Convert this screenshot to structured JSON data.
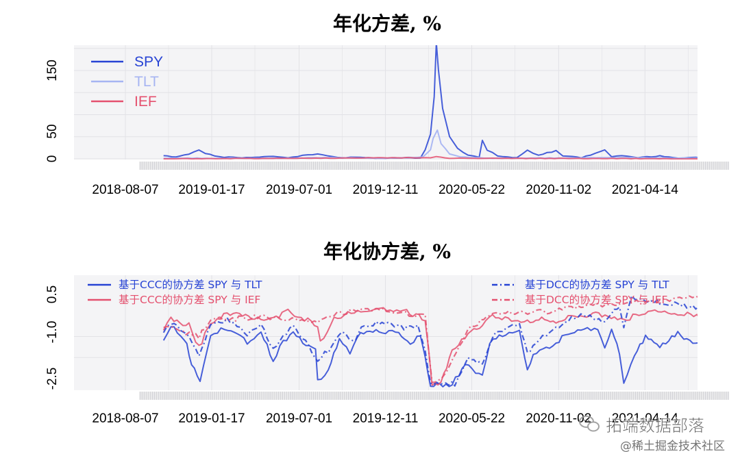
{
  "colors": {
    "spy": "#2743d4",
    "tlt": "#a6b4f2",
    "ief": "#e4506e",
    "panel": "#f4f4f6",
    "grid": "#e2e2e6"
  },
  "watermark": {
    "icon": "wechat-icon",
    "text": "拓端数据部落",
    "text2": "@稀土掘金技术社区"
  },
  "chart_data": [
    {
      "type": "line",
      "title": "年化方差, %",
      "x_ticks": [
        "2018-08-07",
        "2019-01-17",
        "2019-07-01",
        "2019-12-11",
        "2020-05-22",
        "2020-11-02",
        "2021-04-14"
      ],
      "x_range": [
        "2018-06-25",
        "2021-10-10"
      ],
      "y_ticks": [
        "0",
        "50",
        "150"
      ],
      "ylim": [
        0,
        190
      ],
      "grid": true,
      "legend_position": "top-left",
      "series": [
        {
          "name": "SPY",
          "color_key": "spy",
          "style": "solid",
          "points": [
            [
              "2018-10-18",
              5
            ],
            [
              "2018-11-10",
              3
            ],
            [
              "2018-12-05",
              8
            ],
            [
              "2018-12-24",
              15
            ],
            [
              "2019-01-05",
              9
            ],
            [
              "2019-02-01",
              3
            ],
            [
              "2019-03-15",
              2
            ],
            [
              "2019-05-13",
              4
            ],
            [
              "2019-06-10",
              2
            ],
            [
              "2019-08-05",
              9
            ],
            [
              "2019-08-25",
              5
            ],
            [
              "2019-09-20",
              2
            ],
            [
              "2019-10-15",
              3
            ],
            [
              "2019-12-01",
              1
            ],
            [
              "2020-01-27",
              2
            ],
            [
              "2020-02-15",
              1
            ],
            [
              "2020-02-24",
              15
            ],
            [
              "2020-03-05",
              45
            ],
            [
              "2020-03-12",
              110
            ],
            [
              "2020-03-16",
              190
            ],
            [
              "2020-03-20",
              150
            ],
            [
              "2020-03-28",
              85
            ],
            [
              "2020-04-10",
              40
            ],
            [
              "2020-04-25",
              18
            ],
            [
              "2020-05-15",
              6
            ],
            [
              "2020-06-05",
              3
            ],
            [
              "2020-06-11",
              30
            ],
            [
              "2020-06-20",
              15
            ],
            [
              "2020-07-10",
              5
            ],
            [
              "2020-08-15",
              2
            ],
            [
              "2020-09-04",
              15
            ],
            [
              "2020-09-25",
              6
            ],
            [
              "2020-10-28",
              14
            ],
            [
              "2020-11-10",
              5
            ],
            [
              "2020-12-15",
              2
            ],
            [
              "2021-01-28",
              14
            ],
            [
              "2021-02-10",
              4
            ],
            [
              "2021-03-01",
              5
            ],
            [
              "2021-04-01",
              2
            ],
            [
              "2021-05-12",
              5
            ],
            [
              "2021-06-15",
              1
            ],
            [
              "2021-07-19",
              3
            ],
            [
              "2021-08-20",
              1
            ],
            [
              "2021-09-15",
              2
            ]
          ]
        },
        {
          "name": "TLT",
          "color_key": "tlt",
          "style": "solid",
          "points": [
            [
              "2018-10-18",
              1
            ],
            [
              "2019-06-01",
              1
            ],
            [
              "2019-08-15",
              2
            ],
            [
              "2019-12-01",
              1
            ],
            [
              "2020-02-20",
              3
            ],
            [
              "2020-03-05",
              15
            ],
            [
              "2020-03-10",
              35
            ],
            [
              "2020-03-18",
              48
            ],
            [
              "2020-03-25",
              25
            ],
            [
              "2020-04-10",
              8
            ],
            [
              "2020-05-01",
              3
            ],
            [
              "2020-07-01",
              1
            ],
            [
              "2021-02-25",
              2
            ],
            [
              "2021-09-15",
              1
            ]
          ]
        },
        {
          "name": "IEF",
          "color_key": "ief",
          "style": "solid",
          "points": [
            [
              "2018-10-18",
              0
            ],
            [
              "2020-03-05",
              2
            ],
            [
              "2020-03-16",
              4
            ],
            [
              "2020-04-10",
              1
            ],
            [
              "2021-09-15",
              0
            ]
          ]
        }
      ]
    },
    {
      "type": "line",
      "title": "年化协方差, %",
      "x_ticks": [
        "2018-08-07",
        "2019-01-17",
        "2019-07-01",
        "2019-12-11",
        "2020-05-22",
        "2020-11-02",
        "2021-04-14"
      ],
      "x_range": [
        "2018-06-25",
        "2021-10-10"
      ],
      "y_ticks": [
        "0.5",
        "-1.0",
        "-2.5"
      ],
      "ylim": [
        -2.7,
        0.8
      ],
      "grid": true,
      "legend_position": "top-left and top-right",
      "series": [
        {
          "name": "基于CCC的协方差 SPY 与 TLT",
          "color_key": "spy",
          "style": "solid",
          "points": [
            [
              "2018-10-18",
              -1.1
            ],
            [
              "2018-11-01",
              -0.6
            ],
            [
              "2018-12-01",
              -1.3
            ],
            [
              "2018-12-10",
              -2.0
            ],
            [
              "2018-12-26",
              -2.6
            ],
            [
              "2019-01-15",
              -0.9
            ],
            [
              "2019-02-10",
              -0.7
            ],
            [
              "2019-03-25",
              -1.2
            ],
            [
              "2019-04-20",
              -0.9
            ],
            [
              "2019-05-13",
              -1.8
            ],
            [
              "2019-06-01",
              -1.2
            ],
            [
              "2019-06-20",
              -0.9
            ],
            [
              "2019-08-01",
              -1.5
            ],
            [
              "2019-08-05",
              -2.6
            ],
            [
              "2019-08-25",
              -2.2
            ],
            [
              "2019-09-15",
              -1.1
            ],
            [
              "2019-10-05",
              -1.6
            ],
            [
              "2019-10-25",
              -0.9
            ],
            [
              "2019-12-05",
              -0.8
            ],
            [
              "2020-01-05",
              -0.9
            ],
            [
              "2020-01-27",
              -1.3
            ],
            [
              "2020-02-15",
              -0.9
            ],
            [
              "2020-02-24",
              -1.8
            ],
            [
              "2020-03-05",
              -2.7
            ],
            [
              "2020-04-15",
              -2.7
            ],
            [
              "2020-05-10",
              -2.0
            ],
            [
              "2020-06-11",
              -2.4
            ],
            [
              "2020-06-25",
              -1.2
            ],
            [
              "2020-07-25",
              -0.9
            ],
            [
              "2020-08-20",
              -0.8
            ],
            [
              "2020-09-04",
              -2.2
            ],
            [
              "2020-09-15",
              -1.7
            ],
            [
              "2020-10-28",
              -1.2
            ],
            [
              "2020-11-20",
              -0.9
            ],
            [
              "2020-12-20",
              -0.7
            ],
            [
              "2021-01-15",
              -0.8
            ],
            [
              "2021-01-28",
              -1.4
            ],
            [
              "2021-02-10",
              -0.8
            ],
            [
              "2021-02-25",
              -1.6
            ],
            [
              "2021-03-05",
              -2.6
            ],
            [
              "2021-03-25",
              -1.6
            ],
            [
              "2021-04-15",
              -1.0
            ],
            [
              "2021-05-12",
              -1.4
            ],
            [
              "2021-06-15",
              -0.9
            ],
            [
              "2021-07-19",
              -1.3
            ],
            [
              "2021-08-10",
              -0.7
            ],
            [
              "2021-08-20",
              -1.8
            ],
            [
              "2021-09-05",
              -0.8
            ],
            [
              "2021-09-15",
              -0.9
            ]
          ]
        },
        {
          "name": "基于CCC的协方差 SPY 与 IEF",
          "color_key": "ief",
          "style": "solid",
          "points": [
            [
              "2018-10-18",
              -0.7
            ],
            [
              "2018-11-01",
              -0.4
            ],
            [
              "2018-12-05",
              -0.6
            ],
            [
              "2018-12-24",
              -1.4
            ],
            [
              "2019-01-15",
              -0.5
            ],
            [
              "2019-02-15",
              -0.2
            ],
            [
              "2019-05-13",
              -0.4
            ],
            [
              "2019-06-10",
              -0.1
            ],
            [
              "2019-08-05",
              -0.6
            ],
            [
              "2019-08-10",
              -1.2
            ],
            [
              "2019-09-05",
              -0.4
            ],
            [
              "2019-10-01",
              -0.2
            ],
            [
              "2019-12-01",
              -0.05
            ],
            [
              "2020-01-20",
              -0.1
            ],
            [
              "2020-02-24",
              -0.4
            ],
            [
              "2020-03-02",
              -1.6
            ],
            [
              "2020-03-08",
              -2.7
            ],
            [
              "2020-03-25",
              -2.7
            ],
            [
              "2020-04-15",
              -1.5
            ],
            [
              "2020-05-15",
              -0.9
            ],
            [
              "2020-06-11",
              -0.6
            ],
            [
              "2020-06-30",
              -0.3
            ],
            [
              "2020-09-04",
              -0.5
            ],
            [
              "2020-10-01",
              -0.3
            ],
            [
              "2020-10-28",
              -0.6
            ],
            [
              "2020-11-20",
              -0.3
            ],
            [
              "2021-01-05",
              -0.2
            ],
            [
              "2021-03-05",
              -0.4
            ],
            [
              "2021-04-20",
              -0.1
            ],
            [
              "2021-06-15",
              -0.15
            ],
            [
              "2021-08-20",
              -0.4
            ],
            [
              "2021-09-15",
              -0.2
            ]
          ]
        },
        {
          "name": "基于DCC的协方差 SPY 与 TLT",
          "color_key": "spy",
          "style": "dotdash",
          "points": [
            [
              "2018-10-18",
              -0.8
            ],
            [
              "2018-11-01",
              -0.5
            ],
            [
              "2018-12-01",
              -0.9
            ],
            [
              "2018-12-24",
              -1.7
            ],
            [
              "2019-01-15",
              -0.6
            ],
            [
              "2019-02-15",
              -0.4
            ],
            [
              "2019-03-25",
              -0.9
            ],
            [
              "2019-04-20",
              -0.6
            ],
            [
              "2019-05-13",
              -1.4
            ],
            [
              "2019-06-01",
              -1.0
            ],
            [
              "2019-06-20",
              -0.6
            ],
            [
              "2019-08-05",
              -1.8
            ],
            [
              "2019-08-25",
              -1.5
            ],
            [
              "2019-09-20",
              -0.8
            ],
            [
              "2019-10-10",
              -1.2
            ],
            [
              "2019-11-01",
              -0.6
            ],
            [
              "2019-12-10",
              -0.5
            ],
            [
              "2020-01-15",
              -0.7
            ],
            [
              "2020-02-10",
              -0.6
            ],
            [
              "2020-02-24",
              -1.5
            ],
            [
              "2020-03-05",
              -2.7
            ],
            [
              "2020-04-20",
              -2.7
            ],
            [
              "2020-05-15",
              -1.8
            ],
            [
              "2020-06-11",
              -2.0
            ],
            [
              "2020-06-30",
              -1.0
            ],
            [
              "2020-08-01",
              -0.6
            ],
            [
              "2020-08-20",
              -0.5
            ],
            [
              "2020-09-04",
              -1.6
            ],
            [
              "2020-09-20",
              -1.2
            ],
            [
              "2020-10-28",
              -0.7
            ],
            [
              "2020-11-20",
              -0.4
            ],
            [
              "2020-12-20",
              -0.2
            ],
            [
              "2021-01-28",
              -0.5
            ],
            [
              "2021-02-10",
              -0.1
            ],
            [
              "2021-02-25",
              0.1
            ],
            [
              "2021-03-05",
              -0.6
            ],
            [
              "2021-03-20",
              0.4
            ],
            [
              "2021-04-15",
              0.3
            ],
            [
              "2021-05-12",
              0.2
            ],
            [
              "2021-06-15",
              0.15
            ],
            [
              "2021-07-19",
              0.05
            ],
            [
              "2021-08-10",
              0.4
            ],
            [
              "2021-08-20",
              -0.3
            ],
            [
              "2021-09-05",
              0.3
            ],
            [
              "2021-09-15",
              0.1
            ]
          ]
        },
        {
          "name": "基于DCC的协方差 SPY 与 IEF",
          "color_key": "ief",
          "style": "dotdash",
          "points": [
            [
              "2018-10-18",
              -0.6
            ],
            [
              "2018-12-24",
              -1.0
            ],
            [
              "2019-01-15",
              -0.4
            ],
            [
              "2019-05-13",
              -0.3
            ],
            [
              "2019-08-05",
              -0.5
            ],
            [
              "2019-09-05",
              -0.2
            ],
            [
              "2019-12-01",
              0.0
            ],
            [
              "2020-02-24",
              -0.3
            ],
            [
              "2020-03-08",
              -2.6
            ],
            [
              "2020-03-25",
              -2.6
            ],
            [
              "2020-05-15",
              -0.7
            ],
            [
              "2020-07-01",
              -0.2
            ],
            [
              "2020-10-28",
              -0.1
            ],
            [
              "2020-12-20",
              0.1
            ],
            [
              "2021-03-05",
              0.2
            ],
            [
              "2021-05-12",
              0.3
            ],
            [
              "2021-07-19",
              0.4
            ],
            [
              "2021-09-15",
              0.3
            ]
          ]
        }
      ]
    }
  ]
}
